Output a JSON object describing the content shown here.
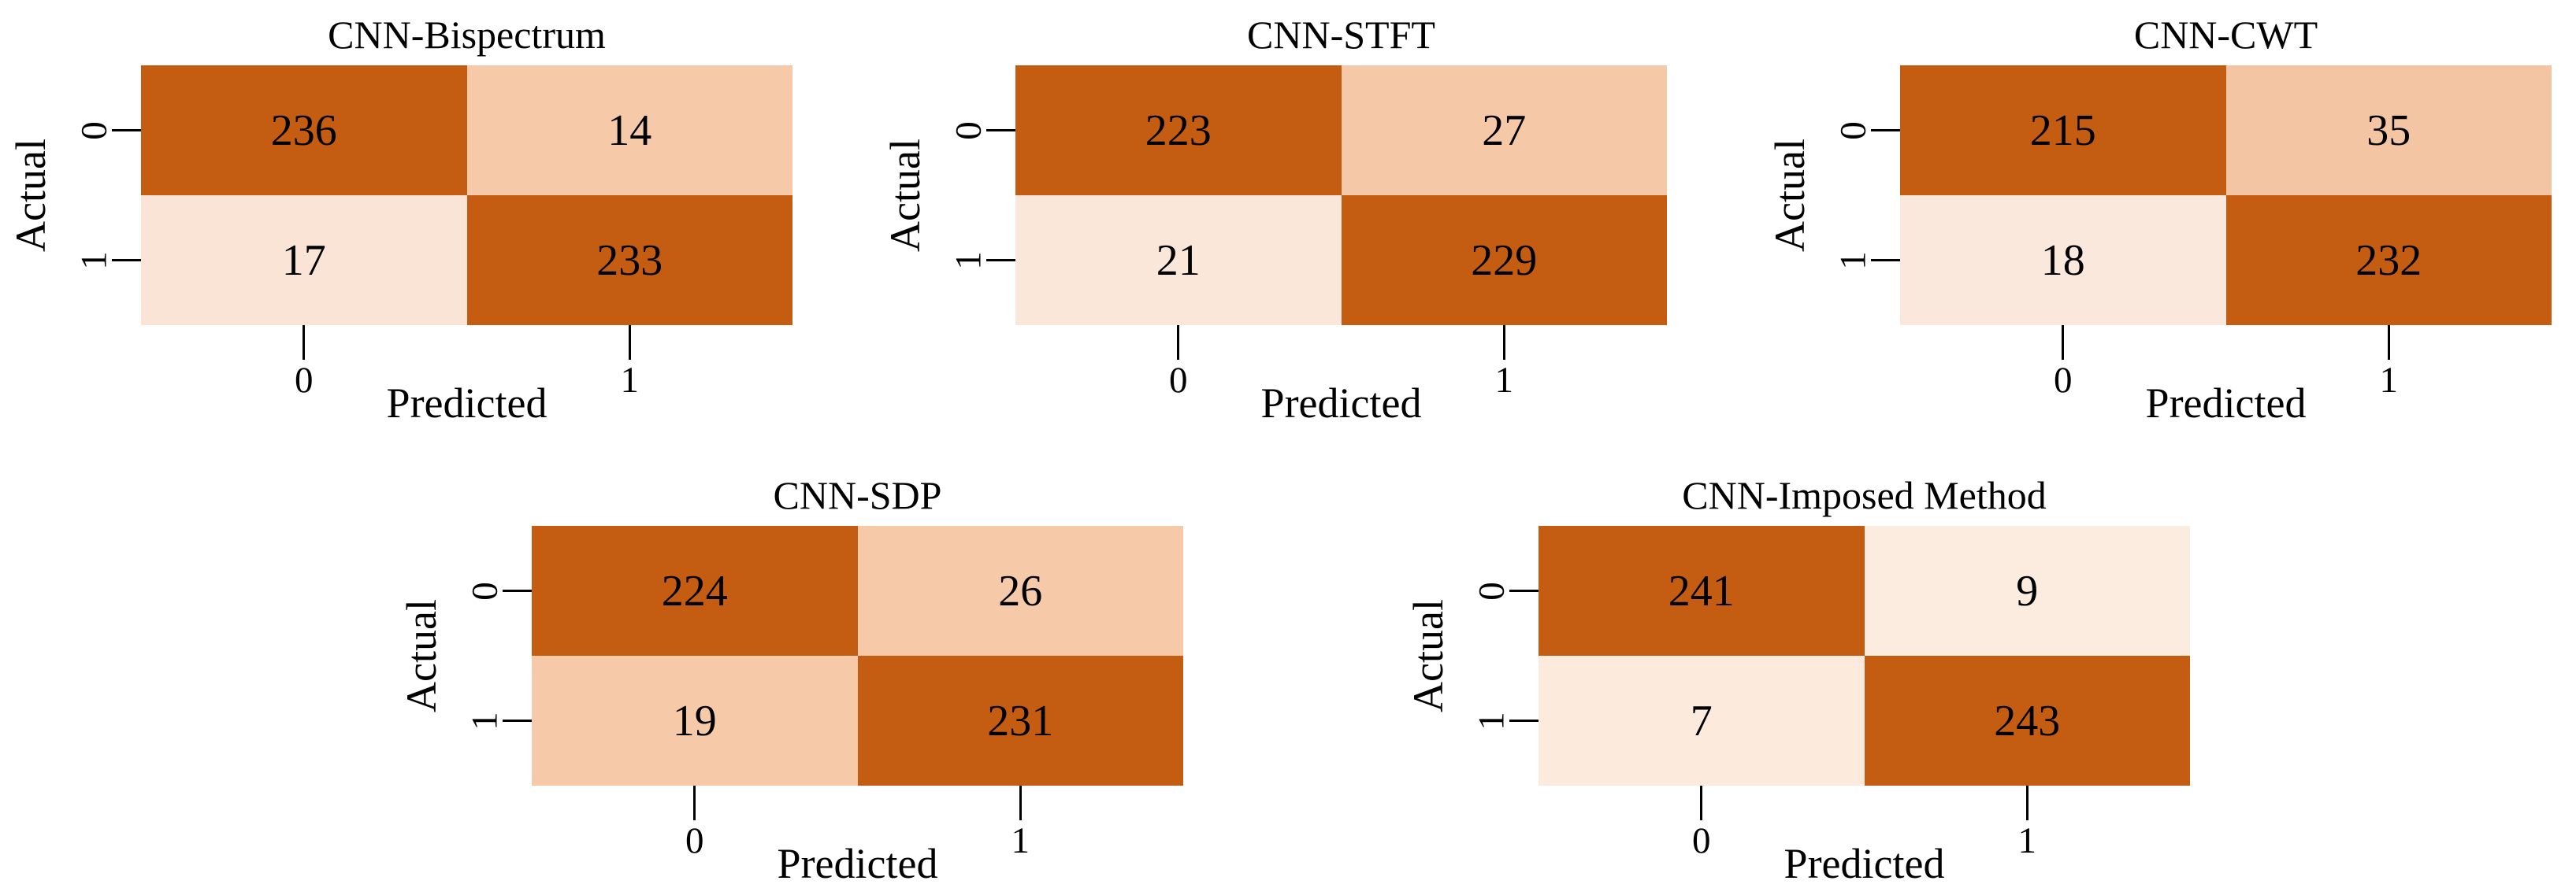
{
  "figure": {
    "background_color": "#ffffff",
    "text_color": "#000000",
    "diagonal_color": "#c45c12"
  },
  "chart_data": [
    {
      "type": "heatmap",
      "title": "CNN-Bispectrum",
      "xlabel": "Predicted",
      "ylabel": "Actual",
      "x_ticks": [
        "0",
        "1"
      ],
      "y_ticks": [
        "0",
        "1"
      ],
      "matrix": [
        [
          236,
          14
        ],
        [
          17,
          233
        ]
      ],
      "cell_colors": [
        [
          "#c45c12",
          "#f6c9a8"
        ],
        [
          "#fae4d5",
          "#c45c12"
        ]
      ],
      "grid": false,
      "legend": "none",
      "colormap": "Oranges"
    },
    {
      "type": "heatmap",
      "title": "CNN-STFT",
      "xlabel": "Predicted",
      "ylabel": "Actual",
      "x_ticks": [
        "0",
        "1"
      ],
      "y_ticks": [
        "0",
        "1"
      ],
      "matrix": [
        [
          223,
          27
        ],
        [
          21,
          229
        ]
      ],
      "cell_colors": [
        [
          "#c45c12",
          "#f5c8a7"
        ],
        [
          "#fbe7da",
          "#c45c12"
        ]
      ],
      "grid": false,
      "legend": "none",
      "colormap": "Oranges"
    },
    {
      "type": "heatmap",
      "title": "CNN-CWT",
      "xlabel": "Predicted",
      "ylabel": "Actual",
      "x_ticks": [
        "0",
        "1"
      ],
      "y_ticks": [
        "0",
        "1"
      ],
      "matrix": [
        [
          215,
          35
        ],
        [
          18,
          232
        ]
      ],
      "cell_colors": [
        [
          "#c45c12",
          "#f4c5a2"
        ],
        [
          "#fbe8dc",
          "#c45c12"
        ]
      ],
      "grid": false,
      "legend": "none",
      "colormap": "Oranges"
    },
    {
      "type": "heatmap",
      "title": "CNN-SDP",
      "xlabel": "Predicted",
      "ylabel": "Actual",
      "x_ticks": [
        "0",
        "1"
      ],
      "y_ticks": [
        "0",
        "1"
      ],
      "matrix": [
        [
          224,
          26
        ],
        [
          19,
          231
        ]
      ],
      "cell_colors": [
        [
          "#c45c12",
          "#f6c9a8"
        ],
        [
          "#f6caa9",
          "#c45c12"
        ]
      ],
      "grid": false,
      "legend": "none",
      "colormap": "Oranges"
    },
    {
      "type": "heatmap",
      "title": "CNN-Imposed Method",
      "xlabel": "Predicted",
      "ylabel": "Actual",
      "x_ticks": [
        "0",
        "1"
      ],
      "y_ticks": [
        "0",
        "1"
      ],
      "matrix": [
        [
          241,
          9
        ],
        [
          7,
          243
        ]
      ],
      "cell_colors": [
        [
          "#c45c12",
          "#fcecdf"
        ],
        [
          "#fcebdd",
          "#c45c12"
        ]
      ],
      "grid": false,
      "legend": "none",
      "colormap": "Oranges"
    }
  ]
}
